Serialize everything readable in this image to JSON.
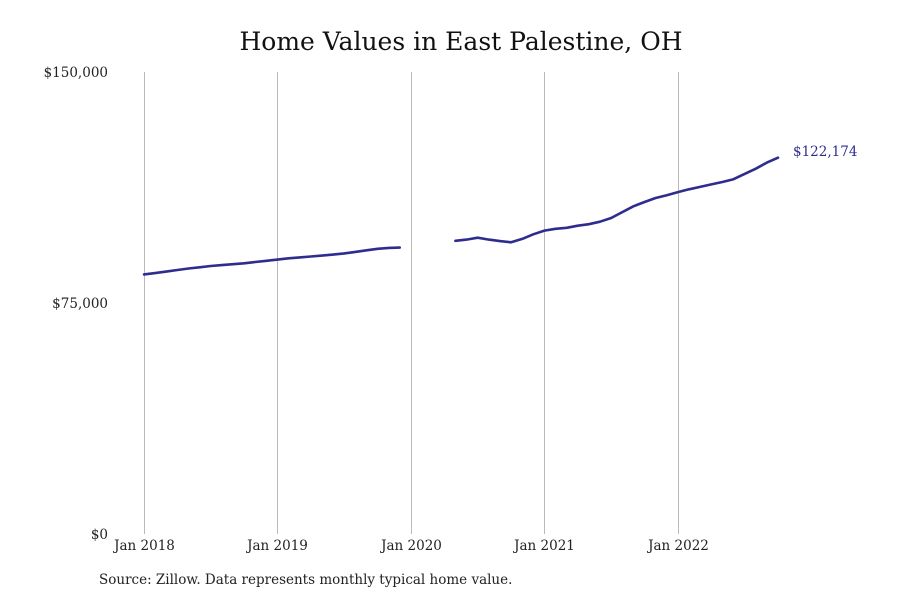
{
  "chart_data": {
    "type": "line",
    "title": "Home Values in East Palestine, OH",
    "xlabel": "",
    "ylabel": "",
    "x_ticks": [
      "2018-01",
      "2019-01",
      "2020-01",
      "2021-01",
      "2022-01"
    ],
    "x_tick_labels": [
      "Jan 2018",
      "Jan 2019",
      "Jan 2020",
      "Jan 2021",
      "Jan 2022"
    ],
    "y_ticks": [
      0,
      75000,
      150000
    ],
    "y_tick_labels": [
      "$0",
      "$75,000",
      "$150,000"
    ],
    "ylim": [
      0,
      150000
    ],
    "xlim": [
      "2018-01",
      "2022-12"
    ],
    "grid": "vertical",
    "series": [
      {
        "color": "#2e2d8f",
        "points": [
          {
            "x": "2018-01",
            "y": 84300
          },
          {
            "x": "2018-02",
            "y": 84700
          },
          {
            "x": "2018-03",
            "y": 85200
          },
          {
            "x": "2018-04",
            "y": 85700
          },
          {
            "x": "2018-05",
            "y": 86200
          },
          {
            "x": "2018-06",
            "y": 86600
          },
          {
            "x": "2018-07",
            "y": 87000
          },
          {
            "x": "2018-08",
            "y": 87300
          },
          {
            "x": "2018-09",
            "y": 87600
          },
          {
            "x": "2018-10",
            "y": 87900
          },
          {
            "x": "2018-11",
            "y": 88300
          },
          {
            "x": "2018-12",
            "y": 88700
          },
          {
            "x": "2019-01",
            "y": 89100
          },
          {
            "x": "2019-02",
            "y": 89500
          },
          {
            "x": "2019-03",
            "y": 89800
          },
          {
            "x": "2019-04",
            "y": 90100
          },
          {
            "x": "2019-05",
            "y": 90400
          },
          {
            "x": "2019-06",
            "y": 90700
          },
          {
            "x": "2019-07",
            "y": 91100
          },
          {
            "x": "2019-08",
            "y": 91600
          },
          {
            "x": "2019-09",
            "y": 92100
          },
          {
            "x": "2019-10",
            "y": 92600
          },
          {
            "x": "2019-11",
            "y": 92900
          },
          {
            "x": "2019-12",
            "y": 93000
          },
          {
            "x": "2020-01",
            "y": null
          },
          {
            "x": "2020-02",
            "y": null
          },
          {
            "x": "2020-03",
            "y": null
          },
          {
            "x": "2020-04",
            "y": null
          },
          {
            "x": "2020-05",
            "y": 95200
          },
          {
            "x": "2020-06",
            "y": 95600
          },
          {
            "x": "2020-07",
            "y": 96200
          },
          {
            "x": "2020-08",
            "y": 95600
          },
          {
            "x": "2020-09",
            "y": 95100
          },
          {
            "x": "2020-10",
            "y": 94700
          },
          {
            "x": "2020-11",
            "y": 95800
          },
          {
            "x": "2020-12",
            "y": 97300
          },
          {
            "x": "2021-01",
            "y": 98500
          },
          {
            "x": "2021-02",
            "y": 99100
          },
          {
            "x": "2021-03",
            "y": 99400
          },
          {
            "x": "2021-04",
            "y": 100100
          },
          {
            "x": "2021-05",
            "y": 100600
          },
          {
            "x": "2021-06",
            "y": 101400
          },
          {
            "x": "2021-07",
            "y": 102600
          },
          {
            "x": "2021-08",
            "y": 104500
          },
          {
            "x": "2021-09",
            "y": 106400
          },
          {
            "x": "2021-10",
            "y": 107800
          },
          {
            "x": "2021-11",
            "y": 109100
          },
          {
            "x": "2021-12",
            "y": 110000
          },
          {
            "x": "2022-01",
            "y": 111000
          },
          {
            "x": "2022-02",
            "y": 111900
          },
          {
            "x": "2022-03",
            "y": 112700
          },
          {
            "x": "2022-04",
            "y": 113500
          },
          {
            "x": "2022-05",
            "y": 114300
          },
          {
            "x": "2022-06",
            "y": 115200
          },
          {
            "x": "2022-07",
            "y": 116900
          },
          {
            "x": "2022-08",
            "y": 118600
          },
          {
            "x": "2022-09",
            "y": 120600
          },
          {
            "x": "2022-10",
            "y": 122174
          }
        ]
      }
    ],
    "end_label": "$122,174",
    "source": "Source: Zillow. Data represents monthly typical home value."
  }
}
